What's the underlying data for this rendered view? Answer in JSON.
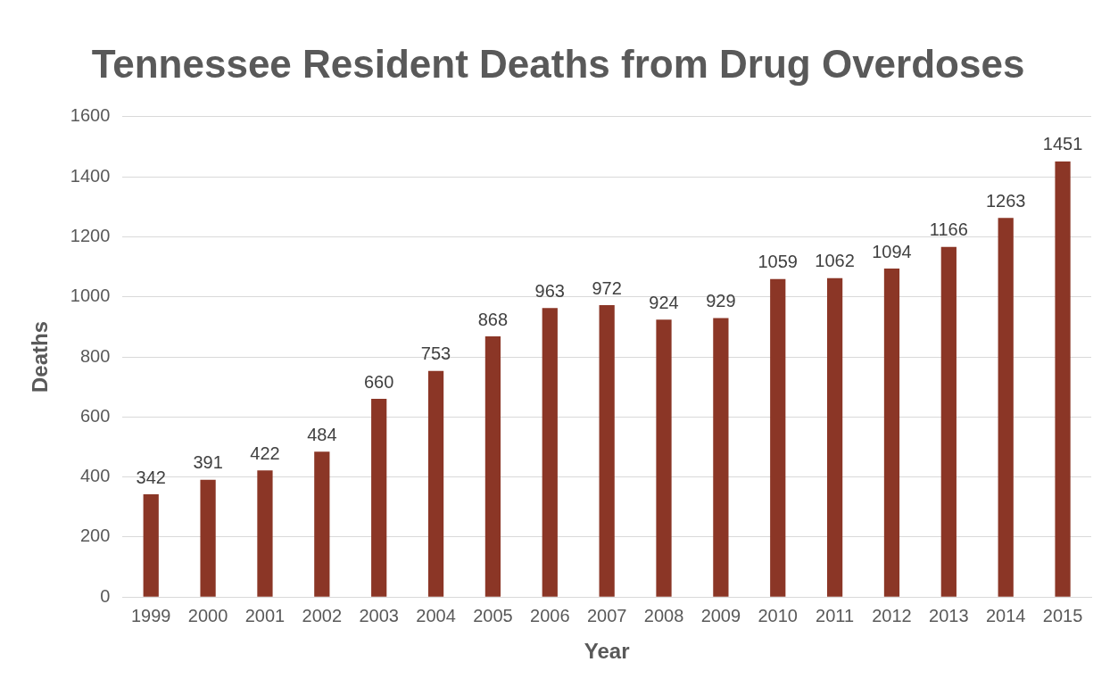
{
  "chart_data": {
    "type": "bar",
    "title": "Tennessee Resident Deaths from Drug Overdoses",
    "xlabel": "Year",
    "ylabel": "Deaths",
    "categories": [
      "1999",
      "2000",
      "2001",
      "2002",
      "2003",
      "2004",
      "2005",
      "2006",
      "2007",
      "2008",
      "2009",
      "2010",
      "2011",
      "2012",
      "2013",
      "2014",
      "2015"
    ],
    "values": [
      342,
      391,
      422,
      484,
      660,
      753,
      868,
      963,
      972,
      924,
      929,
      1059,
      1062,
      1094,
      1166,
      1263,
      1451
    ],
    "color": "#8b3626",
    "ylim": [
      0,
      1600
    ],
    "yticks": [
      0,
      200,
      400,
      600,
      800,
      1000,
      1200,
      1400,
      1600
    ],
    "grid": "y",
    "data_labels": true,
    "legend": false
  }
}
